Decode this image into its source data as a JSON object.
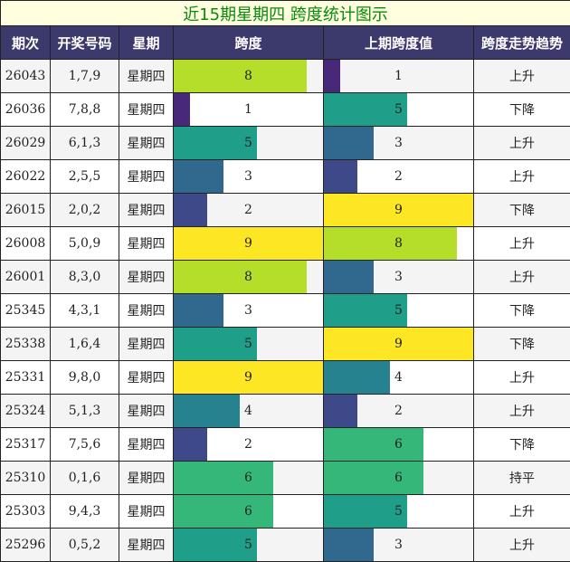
{
  "title": "近15期星期四 跨度统计图示",
  "headers": [
    "期次",
    "开奖号码",
    "星期",
    "跨度",
    "上期跨度值",
    "跨度走势趋势"
  ],
  "max_value": 9,
  "colors": {
    "1": "#482878",
    "2": "#3e4989",
    "3": "#31688e",
    "4": "#26828e",
    "5": "#1f9e89",
    "6": "#35b779",
    "7": "#6ece58",
    "8": "#b5de2b",
    "9": "#fde725"
  },
  "rows": [
    {
      "issue": "26043",
      "numbers": "1,7,9",
      "weekday": "星期四",
      "span": 8,
      "prev_span": 1,
      "trend": "上升"
    },
    {
      "issue": "26036",
      "numbers": "7,8,8",
      "weekday": "星期四",
      "span": 1,
      "prev_span": 5,
      "trend": "下降"
    },
    {
      "issue": "26029",
      "numbers": "6,1,3",
      "weekday": "星期四",
      "span": 5,
      "prev_span": 3,
      "trend": "上升"
    },
    {
      "issue": "26022",
      "numbers": "2,5,5",
      "weekday": "星期四",
      "span": 3,
      "prev_span": 2,
      "trend": "上升"
    },
    {
      "issue": "26015",
      "numbers": "2,0,2",
      "weekday": "星期四",
      "span": 2,
      "prev_span": 9,
      "trend": "下降"
    },
    {
      "issue": "26008",
      "numbers": "5,0,9",
      "weekday": "星期四",
      "span": 9,
      "prev_span": 8,
      "trend": "上升"
    },
    {
      "issue": "26001",
      "numbers": "8,3,0",
      "weekday": "星期四",
      "span": 8,
      "prev_span": 3,
      "trend": "上升"
    },
    {
      "issue": "25345",
      "numbers": "4,3,1",
      "weekday": "星期四",
      "span": 3,
      "prev_span": 5,
      "trend": "下降"
    },
    {
      "issue": "25338",
      "numbers": "1,6,4",
      "weekday": "星期四",
      "span": 5,
      "prev_span": 9,
      "trend": "下降"
    },
    {
      "issue": "25331",
      "numbers": "9,8,0",
      "weekday": "星期四",
      "span": 9,
      "prev_span": 4,
      "trend": "上升"
    },
    {
      "issue": "25324",
      "numbers": "5,1,3",
      "weekday": "星期四",
      "span": 4,
      "prev_span": 2,
      "trend": "上升"
    },
    {
      "issue": "25317",
      "numbers": "7,5,6",
      "weekday": "星期四",
      "span": 2,
      "prev_span": 6,
      "trend": "下降"
    },
    {
      "issue": "25310",
      "numbers": "0,1,6",
      "weekday": "星期四",
      "span": 6,
      "prev_span": 6,
      "trend": "持平"
    },
    {
      "issue": "25303",
      "numbers": "9,4,3",
      "weekday": "星期四",
      "span": 6,
      "prev_span": 5,
      "trend": "上升"
    },
    {
      "issue": "25296",
      "numbers": "0,5,2",
      "weekday": "星期四",
      "span": 5,
      "prev_span": 3,
      "trend": "上升"
    }
  ]
}
